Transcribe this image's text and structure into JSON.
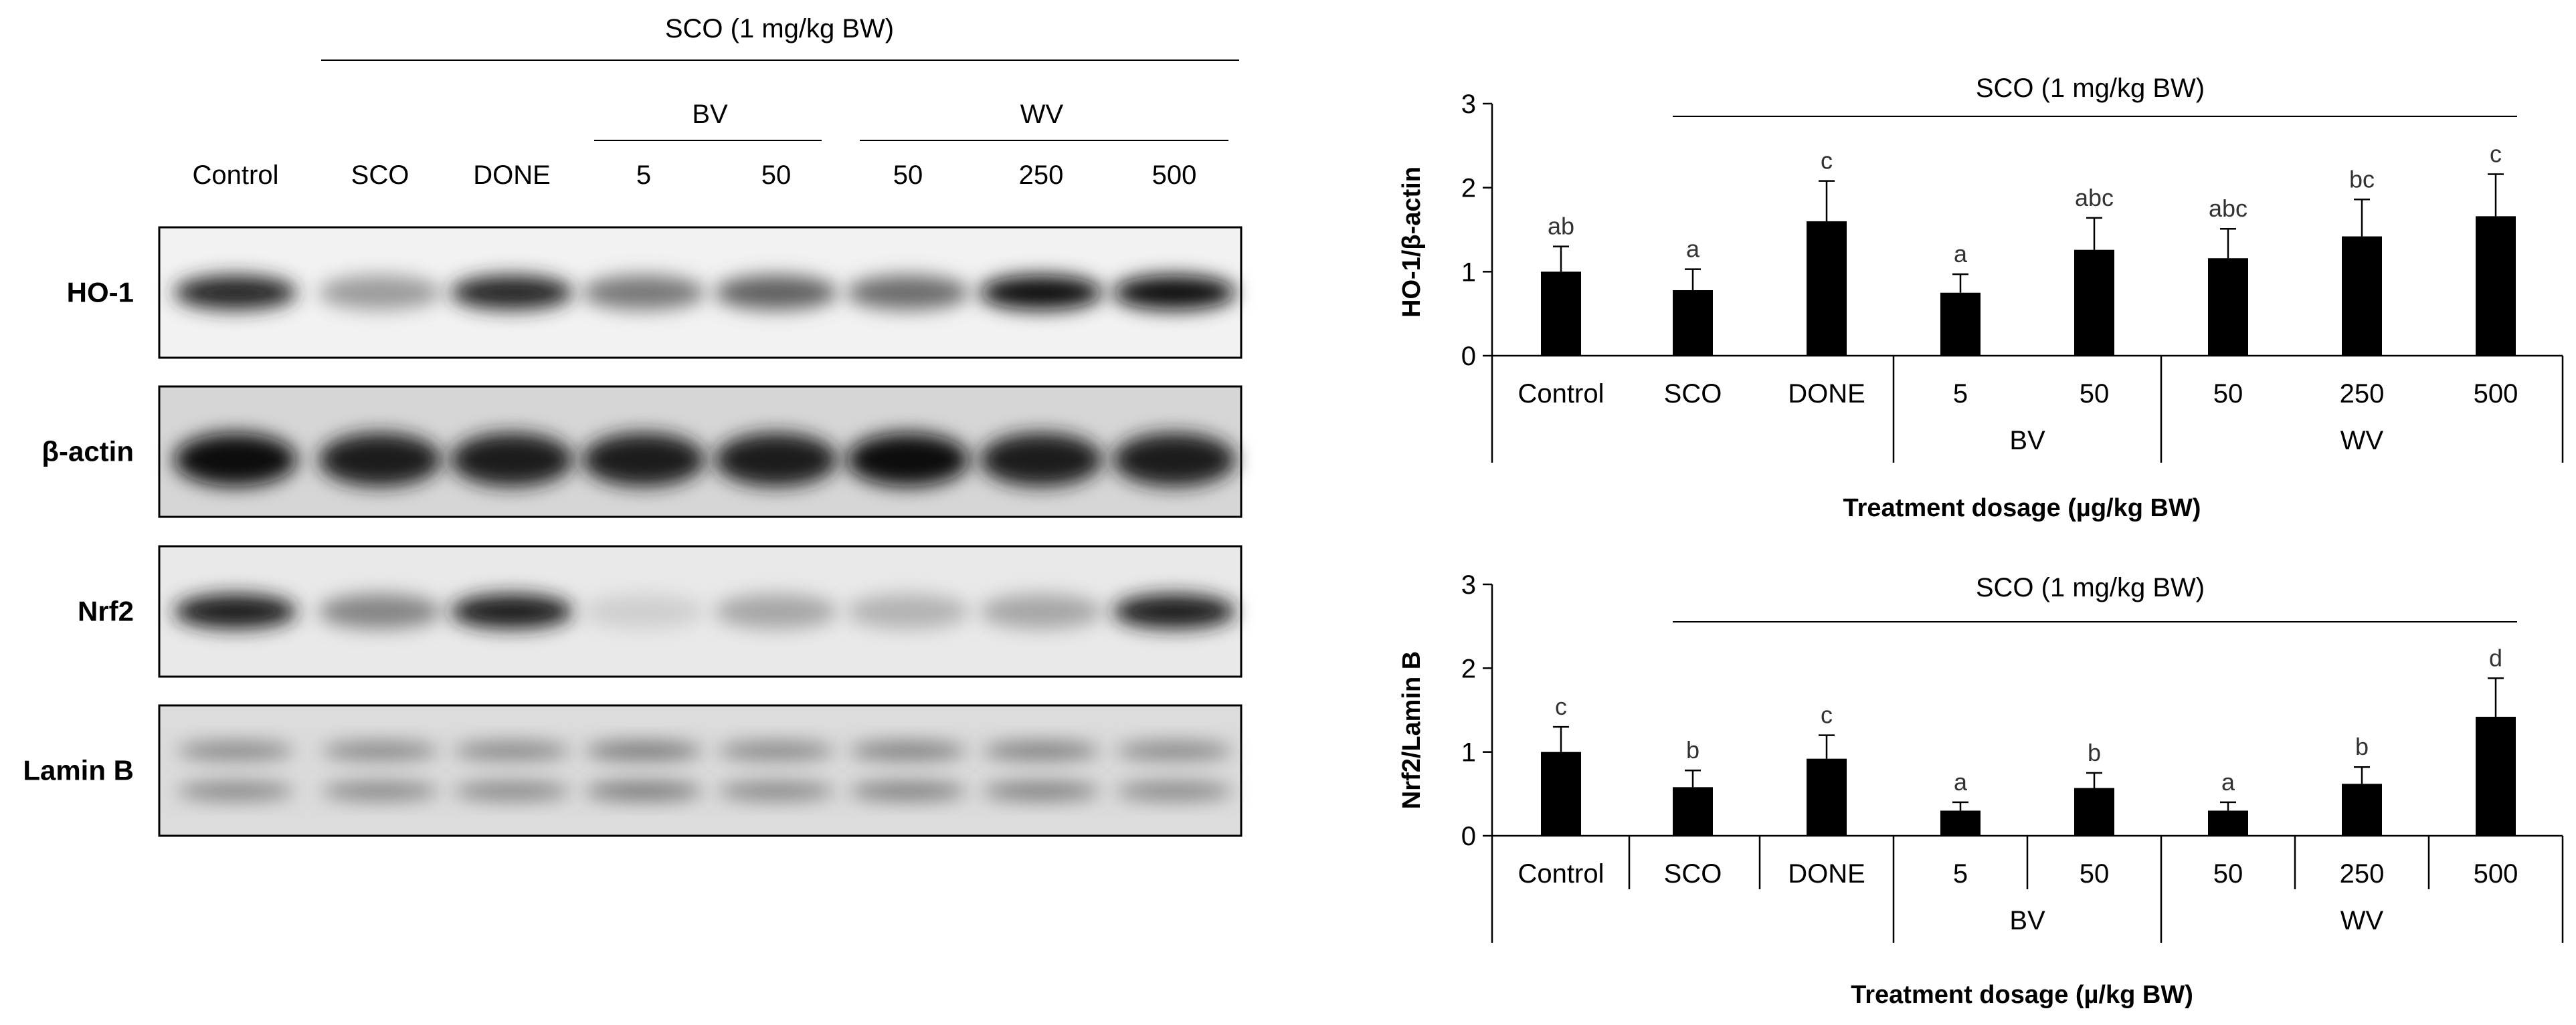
{
  "blot": {
    "header": "SCO (1 mg/kg BW)",
    "group_labels": [
      "BV",
      "WV"
    ],
    "lane_labels": [
      "Control",
      "SCO",
      "DONE",
      "5",
      "50",
      "50",
      "250",
      "500"
    ],
    "rows": [
      {
        "label": "HO-1",
        "intensity": [
          0.85,
          0.35,
          0.85,
          0.5,
          0.6,
          0.55,
          0.95,
          0.95
        ]
      },
      {
        "label": "β-actin",
        "intensity": [
          0.95,
          0.9,
          0.9,
          0.9,
          0.9,
          0.95,
          0.9,
          0.9
        ]
      },
      {
        "label": "Nrf2",
        "intensity": [
          0.9,
          0.45,
          0.9,
          0.12,
          0.3,
          0.25,
          0.3,
          0.9
        ]
      },
      {
        "label": "Lamin B",
        "intensity": [
          0.45,
          0.45,
          0.45,
          0.55,
          0.45,
          0.5,
          0.5,
          0.45
        ]
      }
    ]
  },
  "chart_data": [
    {
      "type": "bar",
      "ylabel": "HO-1/β-actin",
      "xlabel": "Treatment dosage (µg/kg BW)",
      "annotation": "SCO (1 mg/kg BW)",
      "categories": [
        "Control",
        "SCO",
        "DONE",
        "5",
        "50",
        "50",
        "250",
        "500"
      ],
      "groups": [
        {
          "label": "BV",
          "from": 3,
          "to": 4
        },
        {
          "label": "WV",
          "from": 5,
          "to": 7
        }
      ],
      "values": [
        1.0,
        0.78,
        1.6,
        0.75,
        1.26,
        1.16,
        1.42,
        1.66
      ],
      "errors": [
        0.3,
        0.25,
        0.48,
        0.22,
        0.38,
        0.35,
        0.44,
        0.5
      ],
      "letters": [
        "ab",
        "a",
        "c",
        "a",
        "abc",
        "abc",
        "bc",
        "c"
      ],
      "yticks": [
        0,
        1,
        2,
        3
      ],
      "ylim": [
        0,
        3
      ]
    },
    {
      "type": "bar",
      "ylabel": "Nrf2/Lamin B",
      "xlabel": "Treatment dosage (µ/kg BW)",
      "annotation": "SCO (1 mg/kg BW)",
      "categories": [
        "Control",
        "SCO",
        "DONE",
        "5",
        "50",
        "50",
        "250",
        "500"
      ],
      "groups": [
        {
          "label": "BV",
          "from": 3,
          "to": 4
        },
        {
          "label": "WV",
          "from": 5,
          "to": 7
        }
      ],
      "values": [
        1.0,
        0.58,
        0.92,
        0.3,
        0.57,
        0.3,
        0.62,
        1.42
      ],
      "errors": [
        0.3,
        0.2,
        0.28,
        0.1,
        0.18,
        0.1,
        0.2,
        0.46
      ],
      "letters": [
        "c",
        "b",
        "c",
        "a",
        "b",
        "a",
        "b",
        "d"
      ],
      "yticks": [
        0,
        1,
        2,
        3
      ],
      "ylim": [
        0,
        3
      ]
    }
  ]
}
